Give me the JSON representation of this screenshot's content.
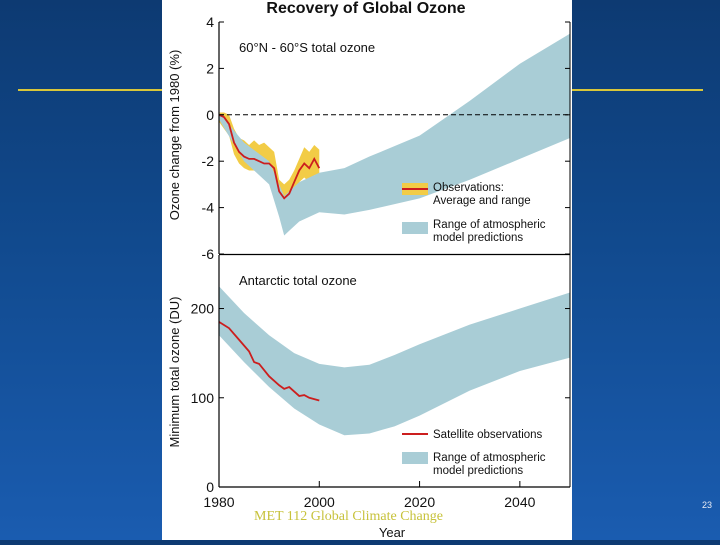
{
  "slide": {
    "footer": "MET 112 Global Climate Change",
    "page_number": "23"
  },
  "colors": {
    "background": "#0d3a72",
    "rule": "#d8c63a",
    "model_band": "#a9cdd6",
    "obs_band": "#f2cc46",
    "obs_line": "#cc1e1e",
    "dashed": "#000000"
  },
  "chart_data": [
    {
      "type": "area",
      "title": "Recovery of Global Ozone",
      "panel_label": "60°N - 60°S total ozone",
      "ylabel": "Ozone change from 1980 (%)",
      "ylim": [
        -6,
        4
      ],
      "yticks": [
        4,
        2,
        0,
        -2,
        -4,
        -6
      ],
      "xlim": [
        1980,
        2050
      ],
      "baseline": 0,
      "series": [
        {
          "name": "Observations: Average and range",
          "kind": "line_with_range",
          "x": [
            1980,
            1981,
            1982,
            1983,
            1984,
            1985,
            1986,
            1987,
            1988,
            1989,
            1990,
            1991,
            1992,
            1993,
            1994,
            1995,
            1996,
            1997,
            1998,
            1999,
            2000
          ],
          "values": [
            0,
            -0.1,
            -0.4,
            -1.2,
            -1.6,
            -1.8,
            -1.9,
            -1.9,
            -2.0,
            -2.1,
            -2.1,
            -2.3,
            -3.3,
            -3.6,
            -3.4,
            -2.9,
            -2.4,
            -2.1,
            -2.3,
            -1.9,
            -2.3
          ],
          "low": [
            -0.3,
            -0.6,
            -0.9,
            -1.7,
            -2.1,
            -2.3,
            -2.4,
            -2.4,
            -2.5,
            -2.6,
            -2.7,
            -2.9,
            -3.8,
            -4.0,
            -3.8,
            -3.3,
            -2.9,
            -2.7,
            -2.9,
            -2.6,
            -3.0
          ],
          "high": [
            0.1,
            0.1,
            0.0,
            -0.6,
            -1.0,
            -1.1,
            -1.3,
            -1.1,
            -1.3,
            -1.2,
            -1.4,
            -1.6,
            -2.8,
            -3.0,
            -2.8,
            -2.4,
            -1.9,
            -1.4,
            -1.6,
            -1.3,
            -1.5
          ]
        },
        {
          "name": "Range of atmospheric model predictions",
          "kind": "band",
          "x": [
            1980,
            1985,
            1990,
            1992,
            1993,
            1994,
            1996,
            1998,
            2000,
            2005,
            2010,
            2020,
            2030,
            2040,
            2050
          ],
          "low": [
            -0.2,
            -2.0,
            -3.0,
            -4.4,
            -5.2,
            -5.0,
            -4.6,
            -4.4,
            -4.2,
            -4.3,
            -4.1,
            -3.6,
            -2.8,
            -1.9,
            -1.0
          ],
          "high": [
            0.1,
            -1.2,
            -2.0,
            -3.0,
            -3.5,
            -3.3,
            -2.9,
            -2.7,
            -2.5,
            -2.3,
            -1.8,
            -0.9,
            0.6,
            2.2,
            3.5
          ]
        }
      ],
      "legend": [
        {
          "label": "Observations: Average and range",
          "line1": "Observations:",
          "line2": "Average and range"
        },
        {
          "label": "Range of atmospheric model predictions",
          "line1": "Range of atmospheric",
          "line2": "model predictions"
        }
      ]
    },
    {
      "type": "area",
      "panel_label": "Antarctic total ozone",
      "ylabel": "Minimum total ozone (DU)",
      "xlabel": "Year",
      "ylim": [
        0,
        260
      ],
      "yticks": [
        0,
        100,
        200
      ],
      "xlim": [
        1980,
        2050
      ],
      "xticks": [
        1980,
        2000,
        2020,
        2040
      ],
      "series": [
        {
          "name": "Satellite observations",
          "kind": "line",
          "x": [
            1980,
            1982,
            1984,
            1986,
            1987,
            1988,
            1990,
            1992,
            1993,
            1994,
            1996,
            1997,
            1998,
            2000
          ],
          "values": [
            185,
            178,
            165,
            152,
            140,
            138,
            124,
            114,
            110,
            112,
            102,
            103,
            100,
            97
          ]
        },
        {
          "name": "Range of atmospheric model predictions",
          "kind": "band",
          "x": [
            1980,
            1985,
            1990,
            1995,
            2000,
            2005,
            2010,
            2015,
            2020,
            2030,
            2040,
            2050
          ],
          "low": [
            170,
            140,
            112,
            88,
            70,
            58,
            60,
            68,
            80,
            108,
            130,
            145
          ],
          "high": [
            225,
            195,
            170,
            150,
            138,
            134,
            137,
            148,
            160,
            182,
            200,
            218
          ]
        }
      ],
      "legend": [
        {
          "label": "Satellite observations",
          "line1": "Satellite observations",
          "line2": ""
        },
        {
          "label": "Range of atmospheric model predictions",
          "line1": "Range of atmospheric",
          "line2": "model predictions"
        }
      ]
    }
  ]
}
